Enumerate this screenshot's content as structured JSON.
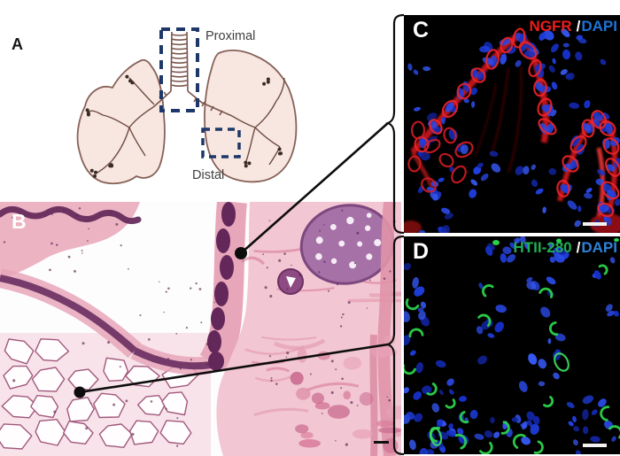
{
  "figure": {
    "panel_a": {
      "label": "A",
      "proximal_label": "Proximal",
      "distal_label": "Distal"
    },
    "panel_b": {
      "label": "B"
    },
    "panel_c": {
      "label": "C",
      "marker": "NGFR",
      "separator": "/",
      "counterstain": "DAPI",
      "marker_color": "#ee1c1c",
      "counterstain_color": "#1e72d8"
    },
    "panel_d": {
      "label": "D",
      "marker": "HTII-280",
      "separator": "/",
      "counterstain": "DAPI",
      "marker_color": "#1fae54",
      "counterstain_color": "#2e82d8"
    },
    "colors": {
      "roi_dashed_box": "#1d3868",
      "nuclei_blue": "#1c3ed6",
      "hne_epithelium_purple": "#62265a",
      "hne_stroma_pink": "#f2c6d3",
      "connector_black": "#0d0d0d",
      "background": "#ffffff"
    }
  }
}
